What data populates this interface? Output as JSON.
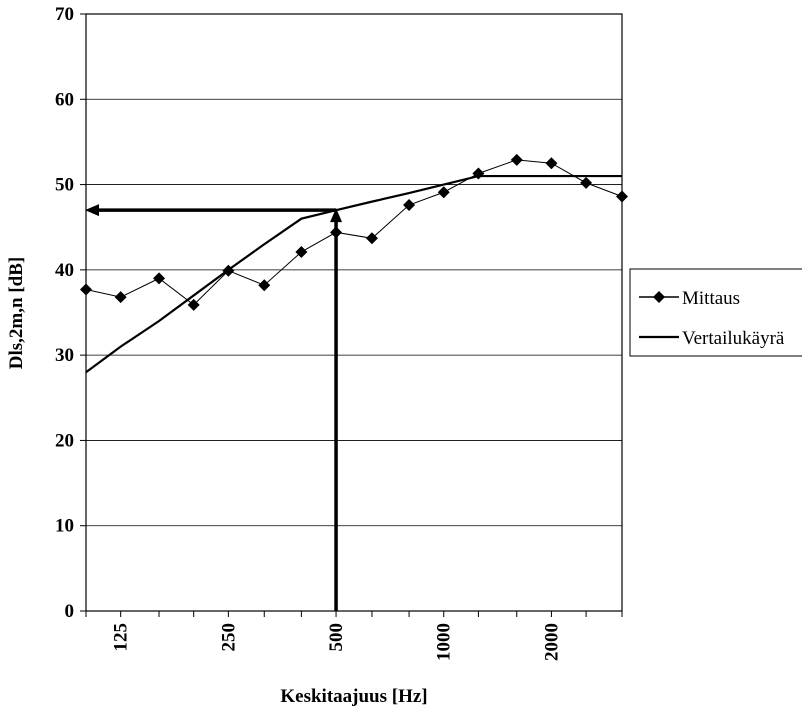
{
  "chart_data": {
    "type": "line",
    "xlabel": "Keskitaajuus [Hz]",
    "ylabel": "Dls,2m,n [dB]",
    "ylim": [
      0,
      70
    ],
    "yticks": [
      0,
      10,
      20,
      30,
      40,
      50,
      60,
      70
    ],
    "x_scale": "log (one-third-octave bands)",
    "xlim": [
      100,
      3150
    ],
    "x_tick_labels": [
      125,
      250,
      500,
      1000,
      2000
    ],
    "grid": "horizontal",
    "legend_position": "right",
    "series": [
      {
        "name": "Mittaus",
        "marker": "diamond",
        "color": "#000000",
        "x": [
          100,
          125,
          160,
          200,
          250,
          315,
          400,
          500,
          630,
          800,
          1000,
          1250,
          1600,
          2000,
          2500,
          3150
        ],
        "values": [
          37.7,
          36.8,
          39.0,
          35.9,
          39.9,
          38.2,
          42.1,
          44.4,
          43.7,
          47.6,
          49.1,
          51.3,
          52.9,
          52.5,
          50.2,
          48.6
        ]
      },
      {
        "name": "Vertailukäyrä",
        "marker": "none",
        "color": "#000000",
        "x": [
          100,
          125,
          160,
          200,
          250,
          315,
          400,
          500,
          630,
          800,
          1000,
          1250,
          1600,
          2000,
          2500,
          3150
        ],
        "values": [
          28,
          31,
          34,
          37,
          40,
          43,
          46,
          47,
          48,
          49,
          50,
          51,
          51,
          51,
          51,
          51
        ]
      }
    ],
    "annotation": {
      "frequency": 500,
      "level": 47,
      "style": "arrows"
    }
  }
}
